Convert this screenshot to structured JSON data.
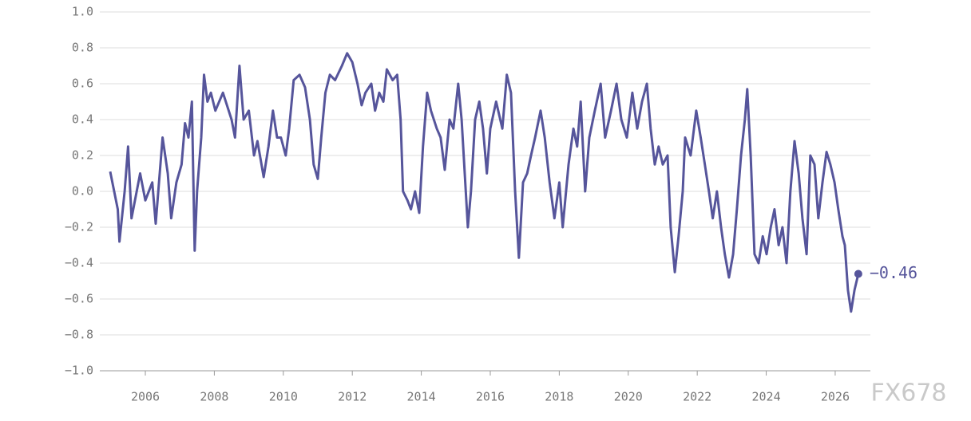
{
  "chart_data": {
    "type": "line",
    "x": [
      2004.98,
      2005.2,
      2005.25,
      2005.4,
      2005.5,
      2005.6,
      2005.85,
      2006.0,
      2006.2,
      2006.3,
      2006.5,
      2006.65,
      2006.75,
      2006.9,
      2007.05,
      2007.15,
      2007.25,
      2007.35,
      2007.43,
      2007.5,
      2007.62,
      2007.7,
      2007.8,
      2007.9,
      2008.03,
      2008.25,
      2008.5,
      2008.6,
      2008.73,
      2008.85,
      2009.0,
      2009.15,
      2009.25,
      2009.43,
      2009.57,
      2009.7,
      2009.82,
      2009.93,
      2010.07,
      2010.17,
      2010.3,
      2010.47,
      2010.63,
      2010.77,
      2010.88,
      2011.0,
      2011.1,
      2011.22,
      2011.35,
      2011.5,
      2011.7,
      2011.85,
      2012.0,
      2012.15,
      2012.27,
      2012.38,
      2012.55,
      2012.66,
      2012.78,
      2012.9,
      2013.0,
      2013.17,
      2013.3,
      2013.4,
      2013.47,
      2013.6,
      2013.7,
      2013.82,
      2013.94,
      2014.05,
      2014.17,
      2014.28,
      2014.45,
      2014.56,
      2014.68,
      2014.82,
      2014.93,
      2015.07,
      2015.17,
      2015.26,
      2015.35,
      2015.44,
      2015.56,
      2015.68,
      2015.79,
      2015.9,
      2016.0,
      2016.17,
      2016.35,
      2016.48,
      2016.6,
      2016.72,
      2016.83,
      2016.95,
      2017.07,
      2017.18,
      2017.3,
      2017.46,
      2017.58,
      2017.72,
      2017.86,
      2018.0,
      2018.1,
      2018.27,
      2018.41,
      2018.52,
      2018.62,
      2018.75,
      2018.87,
      2019.03,
      2019.2,
      2019.33,
      2019.5,
      2019.66,
      2019.8,
      2019.96,
      2020.12,
      2020.26,
      2020.4,
      2020.54,
      2020.65,
      2020.77,
      2020.88,
      2021.0,
      2021.14,
      2021.23,
      2021.35,
      2021.46,
      2021.58,
      2021.65,
      2021.81,
      2021.97,
      2022.1,
      2022.22,
      2022.34,
      2022.45,
      2022.57,
      2022.69,
      2022.8,
      2022.92,
      2023.04,
      2023.15,
      2023.27,
      2023.38,
      2023.45,
      2023.55,
      2023.66,
      2023.78,
      2023.9,
      2024.01,
      2024.13,
      2024.24,
      2024.36,
      2024.47,
      2024.59,
      2024.7,
      2024.82,
      2024.94,
      2025.05,
      2025.17,
      2025.28,
      2025.4,
      2025.51,
      2025.63,
      2025.75,
      2025.86,
      2025.98,
      2026.09,
      2026.21,
      2026.28,
      2026.37,
      2026.46,
      2026.56,
      2026.67
    ],
    "series": [
      {
        "color": "#56559b",
        "values": [
          0.11,
          -0.1,
          -0.28,
          0.0,
          0.25,
          -0.15,
          0.1,
          -0.05,
          0.05,
          -0.18,
          0.3,
          0.1,
          -0.15,
          0.05,
          0.15,
          0.38,
          0.3,
          0.5,
          -0.33,
          0.0,
          0.3,
          0.65,
          0.5,
          0.55,
          0.45,
          0.55,
          0.4,
          0.3,
          0.7,
          0.4,
          0.45,
          0.2,
          0.28,
          0.08,
          0.25,
          0.45,
          0.3,
          0.3,
          0.2,
          0.35,
          0.62,
          0.65,
          0.58,
          0.4,
          0.15,
          0.07,
          0.3,
          0.55,
          0.65,
          0.62,
          0.7,
          0.77,
          0.72,
          0.6,
          0.48,
          0.55,
          0.6,
          0.45,
          0.55,
          0.5,
          0.68,
          0.62,
          0.65,
          0.4,
          0.0,
          -0.05,
          -0.1,
          0.0,
          -0.12,
          0.25,
          0.55,
          0.45,
          0.35,
          0.3,
          0.12,
          0.4,
          0.35,
          0.6,
          0.4,
          0.1,
          -0.2,
          0.0,
          0.4,
          0.5,
          0.35,
          0.1,
          0.35,
          0.5,
          0.35,
          0.65,
          0.55,
          0.0,
          -0.37,
          0.05,
          0.1,
          0.2,
          0.3,
          0.45,
          0.3,
          0.05,
          -0.15,
          0.05,
          -0.2,
          0.15,
          0.35,
          0.25,
          0.5,
          0.0,
          0.3,
          0.45,
          0.6,
          0.3,
          0.45,
          0.6,
          0.4,
          0.3,
          0.55,
          0.35,
          0.5,
          0.6,
          0.35,
          0.15,
          0.25,
          0.15,
          0.2,
          -0.2,
          -0.45,
          -0.25,
          0.0,
          0.3,
          0.2,
          0.45,
          0.3,
          0.15,
          0.0,
          -0.15,
          0.0,
          -0.2,
          -0.35,
          -0.48,
          -0.35,
          -0.1,
          0.2,
          0.4,
          0.57,
          0.2,
          -0.35,
          -0.4,
          -0.25,
          -0.35,
          -0.2,
          -0.1,
          -0.3,
          -0.2,
          -0.4,
          0.0,
          0.28,
          0.1,
          -0.15,
          -0.35,
          0.2,
          0.15,
          -0.15,
          0.05,
          0.22,
          0.15,
          0.05,
          -0.1,
          -0.25,
          -0.3,
          -0.55,
          -0.67,
          -0.55,
          -0.46
        ]
      }
    ],
    "last_label": "−0.46",
    "xlim": [
      2004.68,
      2027.02
    ],
    "xticks": [
      2006,
      2008,
      2010,
      2012,
      2014,
      2016,
      2018,
      2020,
      2022,
      2024,
      2026
    ],
    "ylim": [
      -1,
      1
    ],
    "yticks": [
      {
        "value": 1,
        "label": "1.0"
      },
      0.8,
      0.6,
      0.4,
      0.2,
      {
        "value": 0,
        "label": "0.0"
      },
      {
        "value": -0.2,
        "label": "−0.2"
      },
      {
        "value": -0.4,
        "label": "−0.4"
      },
      {
        "value": -0.6,
        "label": "−0.6"
      },
      {
        "value": -0.8,
        "label": "−0.8"
      },
      {
        "value": -1,
        "label": "−1.0"
      }
    ],
    "grid": true,
    "watermark": "FX678"
  }
}
